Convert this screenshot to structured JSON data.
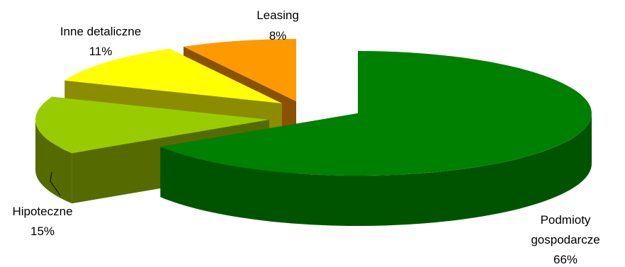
{
  "chart_data": {
    "type": "pie",
    "title": "",
    "style": "3d-exploded",
    "slices": [
      {
        "label_lines": [
          "Podmioty",
          "gospodarcze"
        ],
        "pct_label": "66%",
        "value": 66,
        "color": "#008000",
        "side_color": "#005400"
      },
      {
        "label_lines": [
          "Hipoteczne"
        ],
        "pct_label": "15%",
        "value": 15,
        "color": "#99cc00",
        "side_color": "#556b00"
      },
      {
        "label_lines": [
          "Inne detaliczne"
        ],
        "pct_label": "11%",
        "value": 11,
        "color": "#ffff00",
        "side_color": "#8c8c00"
      },
      {
        "label_lines": [
          "Leasing"
        ],
        "pct_label": "8%",
        "value": 8,
        "color": "#ff9900",
        "side_color": "#8a5200"
      }
    ]
  }
}
